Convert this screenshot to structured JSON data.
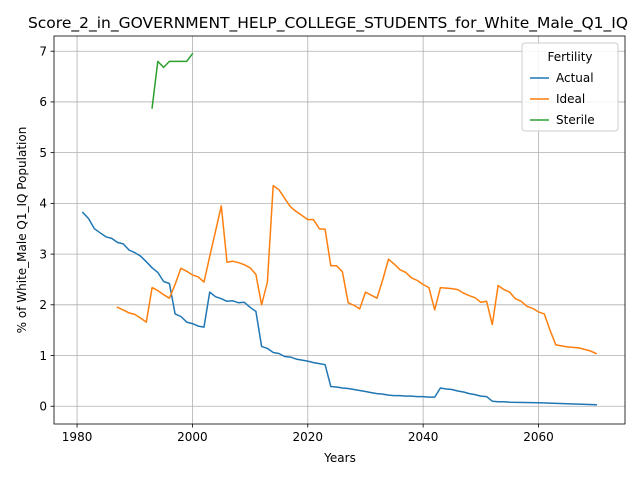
{
  "chart_data": {
    "type": "line",
    "title": "Score_2_in_GOVERNMENT_HELP_COLLEGE_STUDENTS_for_White_Male_Q1_IQ",
    "xlabel": "Years",
    "ylabel": "% of White_Male Q1_IQ Population",
    "xlim": [
      1976,
      2075
    ],
    "ylim": [
      -0.35,
      7.3
    ],
    "x_ticks": [
      1980,
      2000,
      2020,
      2040,
      2060
    ],
    "y_ticks": [
      0,
      1,
      2,
      3,
      4,
      5,
      6,
      7
    ],
    "grid": true,
    "legend": {
      "title": "Fertility",
      "placement": "top-right"
    },
    "series": [
      {
        "name": "Actual",
        "color": "#1f77b4",
        "points": [
          [
            1981,
            3.82
          ],
          [
            1982,
            3.7
          ],
          [
            1983,
            3.5
          ],
          [
            1984,
            3.42
          ],
          [
            1985,
            3.34
          ],
          [
            1986,
            3.31
          ],
          [
            1987,
            3.23
          ],
          [
            1988,
            3.2
          ],
          [
            1989,
            3.08
          ],
          [
            1990,
            3.03
          ],
          [
            1991,
            2.96
          ],
          [
            1992,
            2.85
          ],
          [
            1993,
            2.73
          ],
          [
            1994,
            2.64
          ],
          [
            1995,
            2.46
          ],
          [
            1996,
            2.42
          ],
          [
            1997,
            1.82
          ],
          [
            1998,
            1.77
          ],
          [
            1999,
            1.66
          ],
          [
            2000,
            1.63
          ],
          [
            2001,
            1.58
          ],
          [
            2002,
            1.56
          ],
          [
            2003,
            2.25
          ],
          [
            2004,
            2.16
          ],
          [
            2005,
            2.12
          ],
          [
            2006,
            2.07
          ],
          [
            2007,
            2.08
          ],
          [
            2008,
            2.04
          ],
          [
            2009,
            2.05
          ],
          [
            2010,
            1.95
          ],
          [
            2011,
            1.87
          ],
          [
            2012,
            1.18
          ],
          [
            2013,
            1.14
          ],
          [
            2014,
            1.06
          ],
          [
            2015,
            1.04
          ],
          [
            2016,
            0.98
          ],
          [
            2017,
            0.97
          ],
          [
            2018,
            0.93
          ],
          [
            2019,
            0.91
          ],
          [
            2020,
            0.89
          ],
          [
            2021,
            0.86
          ],
          [
            2022,
            0.84
          ],
          [
            2023,
            0.82
          ],
          [
            2024,
            0.39
          ],
          [
            2025,
            0.38
          ],
          [
            2026,
            0.36
          ],
          [
            2027,
            0.35
          ],
          [
            2028,
            0.33
          ],
          [
            2029,
            0.31
          ],
          [
            2030,
            0.29
          ],
          [
            2031,
            0.27
          ],
          [
            2032,
            0.25
          ],
          [
            2033,
            0.24
          ],
          [
            2034,
            0.22
          ],
          [
            2035,
            0.21
          ],
          [
            2036,
            0.21
          ],
          [
            2037,
            0.2
          ],
          [
            2038,
            0.2
          ],
          [
            2039,
            0.19
          ],
          [
            2040,
            0.19
          ],
          [
            2041,
            0.18
          ],
          [
            2042,
            0.18
          ],
          [
            2043,
            0.36
          ],
          [
            2044,
            0.34
          ],
          [
            2045,
            0.33
          ],
          [
            2046,
            0.3
          ],
          [
            2047,
            0.28
          ],
          [
            2048,
            0.25
          ],
          [
            2049,
            0.23
          ],
          [
            2050,
            0.2
          ],
          [
            2051,
            0.19
          ],
          [
            2052,
            0.1
          ],
          [
            2053,
            0.09
          ],
          [
            2054,
            0.09
          ],
          [
            2055,
            0.08
          ],
          [
            2060,
            0.07
          ],
          [
            2065,
            0.05
          ],
          [
            2070,
            0.03
          ]
        ]
      },
      {
        "name": "Ideal",
        "color": "#ff7f0e",
        "points": [
          [
            1987,
            1.95
          ],
          [
            1988,
            1.9
          ],
          [
            1989,
            1.84
          ],
          [
            1990,
            1.81
          ],
          [
            1991,
            1.74
          ],
          [
            1992,
            1.66
          ],
          [
            1993,
            2.34
          ],
          [
            1994,
            2.28
          ],
          [
            1995,
            2.2
          ],
          [
            1996,
            2.13
          ],
          [
            1997,
            2.4
          ],
          [
            1998,
            2.72
          ],
          [
            1999,
            2.66
          ],
          [
            2000,
            2.59
          ],
          [
            2001,
            2.55
          ],
          [
            2002,
            2.45
          ],
          [
            2003,
            2.95
          ],
          [
            2004,
            3.45
          ],
          [
            2005,
            3.95
          ],
          [
            2006,
            2.84
          ],
          [
            2007,
            2.86
          ],
          [
            2008,
            2.83
          ],
          [
            2009,
            2.79
          ],
          [
            2010,
            2.73
          ],
          [
            2011,
            2.6
          ],
          [
            2012,
            2.0
          ],
          [
            2013,
            2.45
          ],
          [
            2014,
            4.35
          ],
          [
            2015,
            4.27
          ],
          [
            2016,
            4.1
          ],
          [
            2017,
            3.93
          ],
          [
            2018,
            3.84
          ],
          [
            2019,
            3.76
          ],
          [
            2020,
            3.68
          ],
          [
            2021,
            3.68
          ],
          [
            2022,
            3.5
          ],
          [
            2023,
            3.49
          ],
          [
            2024,
            2.77
          ],
          [
            2025,
            2.77
          ],
          [
            2026,
            2.65
          ],
          [
            2027,
            2.04
          ],
          [
            2028,
            1.99
          ],
          [
            2029,
            1.92
          ],
          [
            2030,
            2.25
          ],
          [
            2031,
            2.19
          ],
          [
            2032,
            2.13
          ],
          [
            2033,
            2.5
          ],
          [
            2034,
            2.9
          ],
          [
            2035,
            2.8
          ],
          [
            2036,
            2.69
          ],
          [
            2037,
            2.64
          ],
          [
            2038,
            2.53
          ],
          [
            2039,
            2.48
          ],
          [
            2040,
            2.4
          ],
          [
            2041,
            2.34
          ],
          [
            2042,
            1.9
          ],
          [
            2043,
            2.34
          ],
          [
            2044,
            2.33
          ],
          [
            2045,
            2.32
          ],
          [
            2046,
            2.3
          ],
          [
            2047,
            2.23
          ],
          [
            2048,
            2.18
          ],
          [
            2049,
            2.14
          ],
          [
            2050,
            2.05
          ],
          [
            2051,
            2.07
          ],
          [
            2052,
            1.61
          ],
          [
            2053,
            2.38
          ],
          [
            2054,
            2.3
          ],
          [
            2055,
            2.25
          ],
          [
            2056,
            2.12
          ],
          [
            2057,
            2.07
          ],
          [
            2058,
            1.97
          ],
          [
            2059,
            1.93
          ],
          [
            2060,
            1.86
          ],
          [
            2061,
            1.82
          ],
          [
            2062,
            1.5
          ],
          [
            2063,
            1.21
          ],
          [
            2064,
            1.19
          ],
          [
            2065,
            1.17
          ],
          [
            2066,
            1.16
          ],
          [
            2067,
            1.15
          ],
          [
            2068,
            1.12
          ],
          [
            2069,
            1.09
          ],
          [
            2070,
            1.04
          ]
        ]
      },
      {
        "name": "Sterile",
        "color": "#2ca02c",
        "points": [
          [
            1993,
            5.88
          ],
          [
            1994,
            6.8
          ],
          [
            1995,
            6.68
          ],
          [
            1996,
            6.8
          ],
          [
            1997,
            6.8
          ],
          [
            1998,
            6.8
          ],
          [
            1999,
            6.8
          ],
          [
            2000,
            6.95
          ]
        ]
      }
    ]
  }
}
